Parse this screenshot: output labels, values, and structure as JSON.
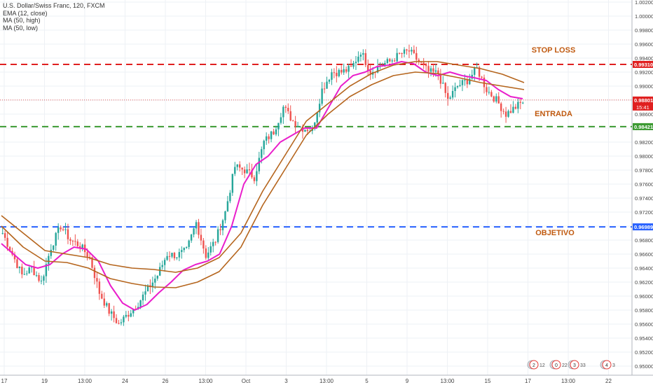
{
  "legend": {
    "symbol": "U.S. Dollar/Swiss Franc, 120, FXCM",
    "indicators": [
      "EMA (12, close)",
      "MA (50, high)",
      "MA (50, low)"
    ]
  },
  "colors": {
    "background": "#ffffff",
    "grid": "#eef1f5",
    "up": "#26a69a",
    "down": "#ef5350",
    "ema": "#e91ecb",
    "ma": "#b5651d",
    "stop_loss": "#e02020",
    "entry": "#3c9a32",
    "target": "#2962ff",
    "annotation_text": "#c05a10",
    "axis_text": "#444444",
    "price_tag": "#e02020"
  },
  "annotations": {
    "stop_loss_label": "STOP LOSS",
    "entry_label": "ENTRADA",
    "target_label": "OBJETIVO"
  },
  "events": {
    "items": [
      {
        "glyph": "2",
        "label": "12"
      },
      {
        "glyph": "0",
        "label": "22"
      },
      {
        "glyph": "3",
        "label": "33"
      },
      {
        "glyph": "4",
        "label": "3"
      }
    ]
  },
  "chart_data": {
    "type": "candlestick",
    "title": "U.S. Dollar/Swiss Franc, 120, FXCM",
    "ylim": [
      0.9487,
      1.0023
    ],
    "y_ticks": [
      "1.00200",
      "1.00000",
      "0.99800",
      "0.99600",
      "0.99400",
      "0.99200",
      "0.99000",
      "0.98800",
      "0.98600",
      "0.98400",
      "0.98200",
      "0.98000",
      "0.97800",
      "0.97600",
      "0.97400",
      "0.97200",
      "0.97000",
      "0.96800",
      "0.96600",
      "0.96400",
      "0.96200",
      "0.96000",
      "0.95800",
      "0.95600",
      "0.95400",
      "0.95200",
      "0.95000"
    ],
    "x_ticks": [
      "17",
      "19",
      "13:00",
      "24",
      "26",
      "13:00",
      "Oct",
      "3",
      "13:00",
      "5",
      "9",
      "13:00",
      "15",
      "17",
      "13:00",
      "22"
    ],
    "horizontal_lines": [
      {
        "name": "STOP LOSS",
        "price": 0.9931,
        "label": "0.99310"
      },
      {
        "name": "ENTRADA",
        "price": 0.98421,
        "label": "0.98421"
      },
      {
        "name": "OBJETIVO",
        "price": 0.96989,
        "label": "0.96989"
      }
    ],
    "current_price": {
      "price": 0.98801,
      "label": "0.98801",
      "countdown": "15:41"
    },
    "price_series": [
      0.969,
      0.966,
      0.963,
      0.964,
      0.962,
      0.967,
      0.97,
      0.968,
      0.9672,
      0.9655,
      0.9605,
      0.9578,
      0.956,
      0.9575,
      0.959,
      0.961,
      0.963,
      0.966,
      0.9658,
      0.9665,
      0.9705,
      0.9658,
      0.968,
      0.972,
      0.9785,
      0.978,
      0.977,
      0.982,
      0.9835,
      0.987,
      0.985,
      0.984,
      0.9838,
      0.9895,
      0.992,
      0.992,
      0.9925,
      0.995,
      0.992,
      0.993,
      0.9935,
      0.9945,
      0.995,
      0.9935,
      0.992,
      0.9918,
      0.988,
      0.99,
      0.9908,
      0.9925,
      0.9895,
      0.988,
      0.986,
      0.987,
      0.988
    ],
    "series": [
      {
        "name": "EMA (12, close)",
        "values": [
          0.9675,
          0.966,
          0.9645,
          0.964,
          0.9645,
          0.966,
          0.967,
          0.9667,
          0.965,
          0.9615,
          0.959,
          0.958,
          0.9588,
          0.9605,
          0.962,
          0.9637,
          0.9645,
          0.965,
          0.966,
          0.97,
          0.976,
          0.9788,
          0.98,
          0.982,
          0.983,
          0.984,
          0.984,
          0.987,
          0.99,
          0.9915,
          0.992,
          0.9928,
          0.993,
          0.9935,
          0.9932,
          0.992,
          0.9915,
          0.992,
          0.9915,
          0.9912,
          0.9908,
          0.9895,
          0.9885,
          0.9882
        ]
      },
      {
        "name": "MA (50, high)",
        "values": [
          0.9715,
          0.969,
          0.9665,
          0.966,
          0.9655,
          0.9645,
          0.964,
          0.9638,
          0.9634,
          0.964,
          0.9655,
          0.969,
          0.975,
          0.98,
          0.985,
          0.9875,
          0.99,
          0.9918,
          0.993,
          0.9935,
          0.9935,
          0.993,
          0.9925,
          0.9917,
          0.9905
        ]
      },
      {
        "name": "MA (50, low)",
        "values": [
          0.97,
          0.967,
          0.965,
          0.9648,
          0.964,
          0.9625,
          0.9618,
          0.9613,
          0.9612,
          0.962,
          0.9635,
          0.967,
          0.973,
          0.978,
          0.983,
          0.986,
          0.9885,
          0.9902,
          0.9915,
          0.992,
          0.9918,
          0.9912,
          0.9905,
          0.99,
          0.9895
        ]
      }
    ]
  }
}
